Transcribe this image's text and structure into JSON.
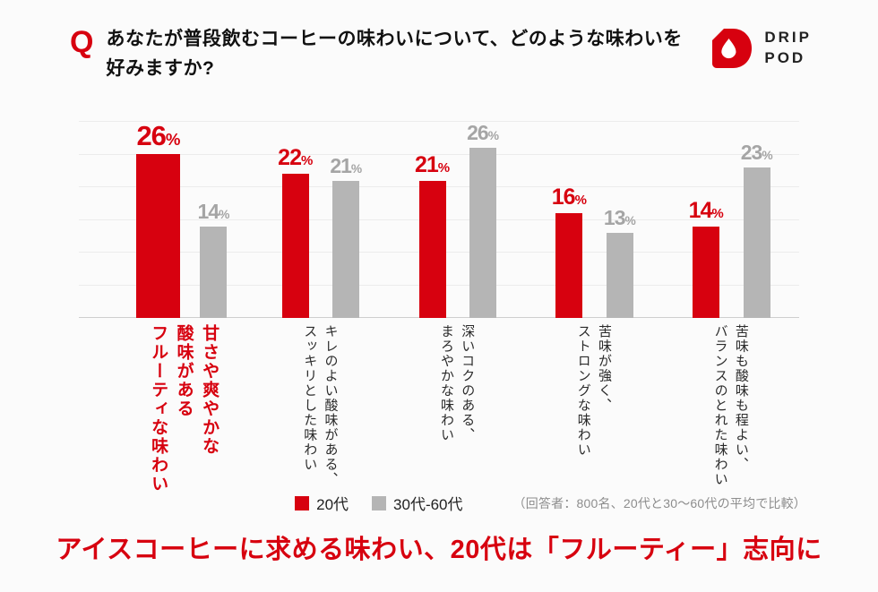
{
  "header": {
    "q_mark": "Q",
    "title_line1": "あなたが普段飲むコーヒーの味わいについて、どのような味わいを",
    "title_line2": "好みますか?",
    "logo": {
      "icon": "drip-pod-drop-icon",
      "brand_line1": "DRIP",
      "brand_line2": "POD"
    }
  },
  "colors": {
    "accent_red": "#d7010f",
    "bar_gray": "#b5b5b5",
    "value_gray": "#a5a5a5",
    "note_gray": "#8d8d8d",
    "text_dark": "#111111",
    "background": "#fbfbfb"
  },
  "chart_data": {
    "type": "bar",
    "title": "",
    "unit": "%",
    "categories": [
      "甘さや爽やかな\n酸味がある\nフルーティな味わい",
      "キレのよい酸味がある、\nスッキリとした味わい",
      "深いコクのある、\nまろやかな味わい",
      "苦味が強く、\nストロングな味わい",
      "苦味も酸味も程よい、\nバランスのとれた味わい"
    ],
    "series": [
      {
        "name": "20代",
        "color": "#d7010f",
        "values": [
          26,
          22,
          21,
          16,
          14
        ]
      },
      {
        "name": "30代-60代",
        "color": "#b5b5b5",
        "values": [
          14,
          21,
          26,
          13,
          23
        ]
      }
    ],
    "highlight_index": 0,
    "ylim": [
      0,
      30
    ],
    "gridline_step": 5,
    "grid": true,
    "legend_position": "bottom",
    "note": "（回答者：800名、20代と30〜60代の平均で比較）"
  },
  "legend": {
    "item1": "20代",
    "item2": "30代-60代",
    "note": "（回答者：800名、20代と30〜60代の平均で比較）"
  },
  "headline": "アイスコーヒーに求める味わい、20代は「フルーティー」志向に"
}
